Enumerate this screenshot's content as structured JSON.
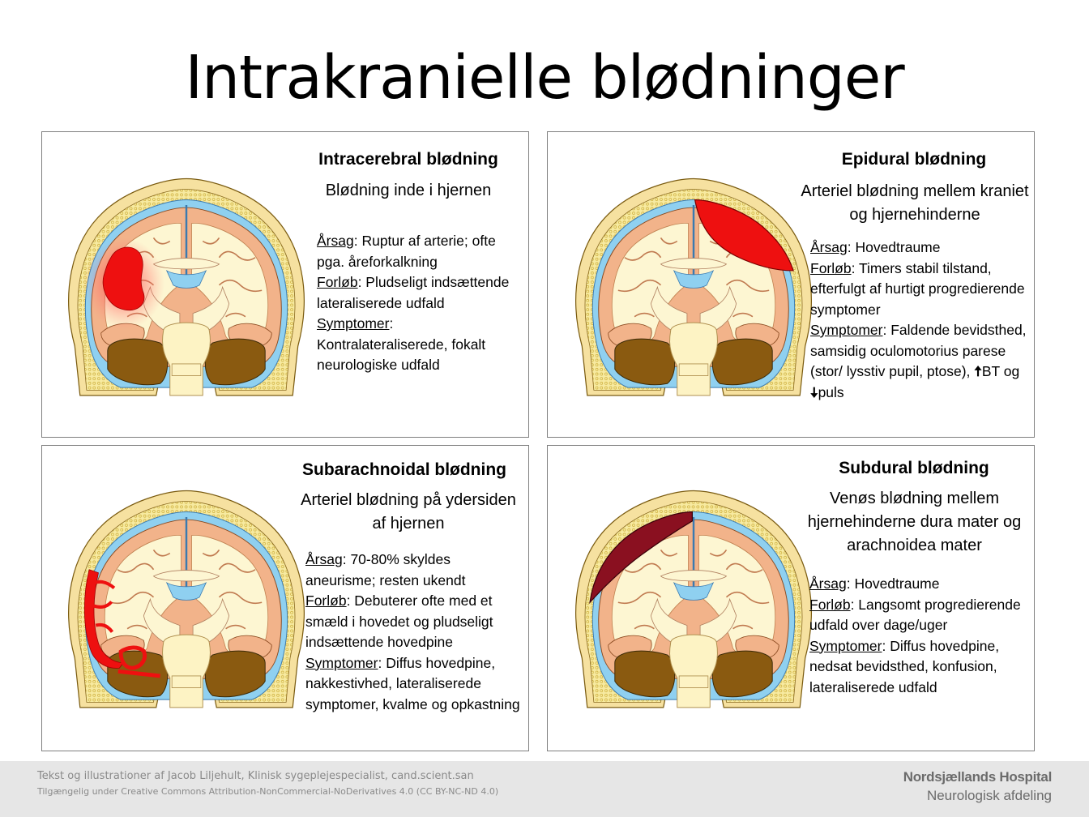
{
  "title": "Intrakranielle blødninger",
  "colors": {
    "skull": "#f5e79a",
    "csf": "#8fd0f0",
    "brain_cortex": "#f0b48c",
    "white_matter": "#fdf6d2",
    "cerebellum": "#8a5a10",
    "blood_arterial": "#ee1010",
    "blood_venous": "#8a1020",
    "panel_border": "#7f7f7f",
    "footer_bg": "#e6e6e6"
  },
  "panels": {
    "intracerebral": {
      "title": "Intracerebral blødning",
      "subtitle": "Blødning inde i hjernen",
      "cause_label": "Årsag",
      "cause_text": ": Ruptur af arterie; ofte pga. åreforkalkning",
      "course_label": "Forløb",
      "course_text": ": Pludseligt indsættende lateraliserede udfald",
      "symptoms_label": "Symptomer",
      "symptoms_text": ": Kontralateraliserede, fokalt neurologiske udfald"
    },
    "epidural": {
      "title": "Epidural blødning",
      "subtitle": "Arteriel blødning mellem kraniet og hjernehinderne",
      "cause_label": "Årsag",
      "cause_text": ": Hovedtraume",
      "course_label": "Forløb",
      "course_text": ": Timers stabil tilstand, efterfulgt af hurtigt progredierende symptomer",
      "symptoms_label": "Symptomer",
      "symptoms_text": ": Faldende bevidsthed, samsidig oculomotorius parese (stor/ lysstiv pupil, ptose), ",
      "bp_arrow": "🠅",
      "bp_text": "BT og ",
      "pulse_arrow": "🠇",
      "pulse_text": "puls"
    },
    "subarachnoid": {
      "title": "Subarachnoidal blødning",
      "subtitle": "Arteriel blødning på ydersiden af hjernen",
      "cause_label": "Årsag",
      "cause_text": ": 70-80% skyldes aneurisme; resten ukendt",
      "course_label": "Forløb",
      "course_text": ": Debuterer ofte med et smæld i hovedet og pludseligt indsættende hovedpine",
      "symptoms_label": "Symptomer",
      "symptoms_text": ": Diffus hovedpine, nakkestivhed, lateraliserede symptomer, kvalme og opkastning"
    },
    "subdural": {
      "title": "Subdural blødning",
      "subtitle": "Venøs blødning mellem hjernehinderne dura mater og arachnoidea mater",
      "cause_label": "Årsag",
      "cause_text": ": Hovedtraume",
      "course_label": "Forløb",
      "course_text": ": Langsomt progredierende udfald over dage/uger",
      "symptoms_label": "Symptomer",
      "symptoms_text": ": Diffus hovedpine, nedsat bevidsthed, konfusion, lateraliserede udfald"
    }
  },
  "footer": {
    "credit": "Tekst og illustrationer af Jacob Liljehult, Klinisk sygeplejespecialist, cand.scient.san",
    "license": "Tilgængelig under Creative Commons Attribution-NonCommercial-NoDerivatives 4.0 (CC BY-NC-ND 4.0)",
    "org_name": "Nordsjællands Hospital",
    "department": "Neurologisk afdeling"
  }
}
